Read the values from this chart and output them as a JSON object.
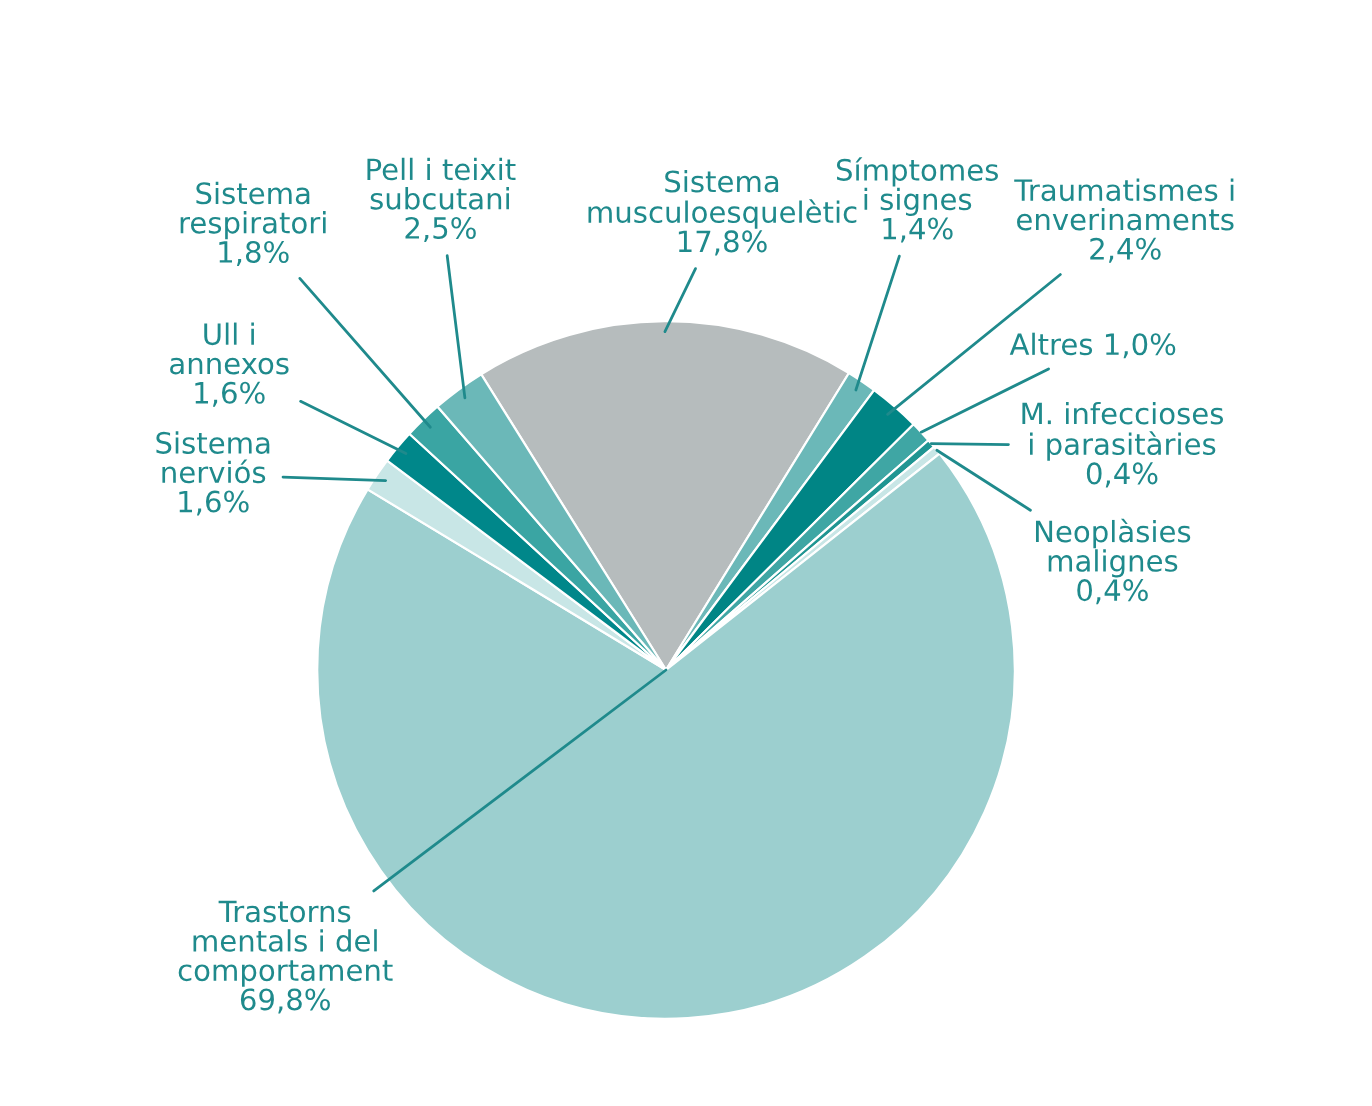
{
  "chart_data": {
    "type": "pie",
    "categories": [
      "Sistema\nmusculoesquelètic",
      "Símptomes\ni signes",
      "Traumatismes i\nenverinaments",
      "Altres",
      "M. infeccioses\ni parasitàries",
      "Neoplàsies\nmalignes",
      "Trastorns\nmentals i del\ncomportament",
      "Sistema\nnerviós",
      "Ull i\nannexos",
      "Sistema\nrespiratori",
      "Pell i teixit\nsubcutani"
    ],
    "values": [
      17.8,
      1.4,
      2.4,
      1.0,
      0.4,
      0.4,
      69.8,
      1.6,
      1.6,
      1.8,
      2.5
    ],
    "value_labels": [
      "17,8%",
      "1,4%",
      "2,4%",
      "1,0%",
      "0,4%",
      "0,4%",
      "69,8%",
      "1,6%",
      "1,6%",
      "1,8%",
      "2,5%"
    ],
    "colors": [
      "#b6bcbd",
      "#6bb8b8",
      "#008585",
      "#3fa6a4",
      "#1f9592",
      "#c8e6e6",
      "#9ccfcf",
      "#c8e6e6",
      "#00878a",
      "#3aa5a3",
      "#6bb8b8"
    ]
  }
}
